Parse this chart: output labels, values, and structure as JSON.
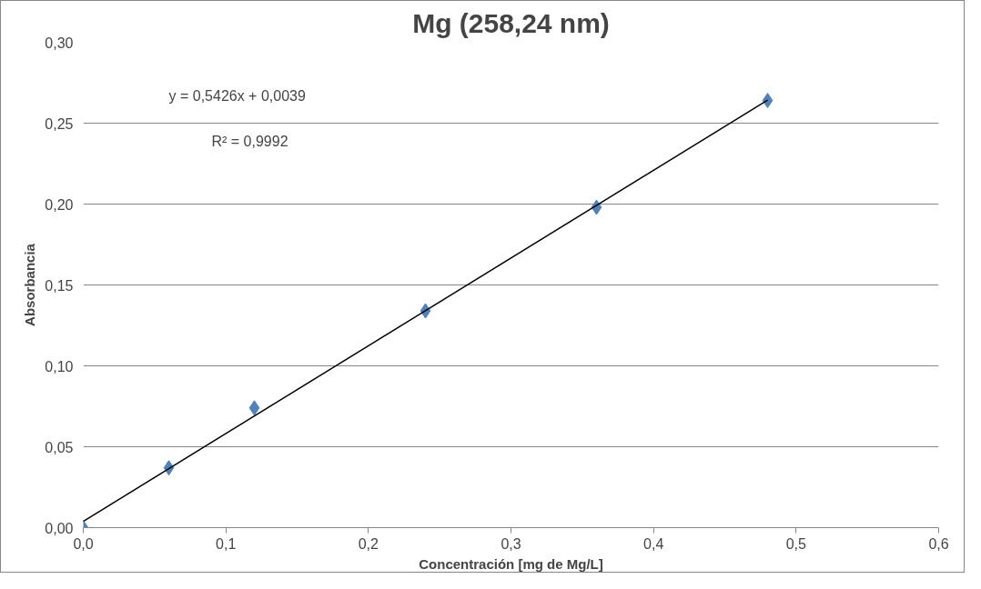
{
  "chart_data": {
    "type": "scatter",
    "title": "Mg (258,24 nm)",
    "xlabel": "Concentración [mg de Mg/L]",
    "ylabel": "Absorbancia",
    "x": [
      0,
      0.06,
      0.12,
      0.24,
      0.36,
      0.48
    ],
    "series": [
      {
        "color": "#4f81bd",
        "marker": "diamond",
        "values": [
          0,
          0.037,
          0.074,
          0.134,
          0.198,
          0.264
        ]
      },
      {
        "type": "line",
        "color": "#000000",
        "marker": "none",
        "line_style": "solid",
        "x": [
          0,
          0.48
        ],
        "values": [
          0.0039,
          0.2643
        ]
      }
    ],
    "annotations": [
      "y = 0,5426x + 0,0039",
      "R² = 0,9992"
    ],
    "xlim": [
      0,
      0.6
    ],
    "ylim": [
      0,
      0.3
    ],
    "xticks": [
      {
        "value": 0,
        "label": "0,0"
      },
      {
        "value": 0.1,
        "label": "0,1"
      },
      {
        "value": 0.2,
        "label": "0,2"
      },
      {
        "value": 0.3,
        "label": "0,3"
      },
      {
        "value": 0.4,
        "label": "0,4"
      },
      {
        "value": 0.5,
        "label": "0,5"
      },
      {
        "value": 0.6,
        "label": "0,6"
      }
    ],
    "yticks": [
      {
        "value": 0,
        "label": "0,00"
      },
      {
        "value": 0.05,
        "label": "0,05"
      },
      {
        "value": 0.1,
        "label": "0,10"
      },
      {
        "value": 0.15,
        "label": "0,15"
      },
      {
        "value": 0.2,
        "label": "0,20"
      },
      {
        "value": 0.25,
        "label": "0,25"
      },
      {
        "value": 0.3,
        "label": "0,30"
      }
    ],
    "grid": "y"
  }
}
